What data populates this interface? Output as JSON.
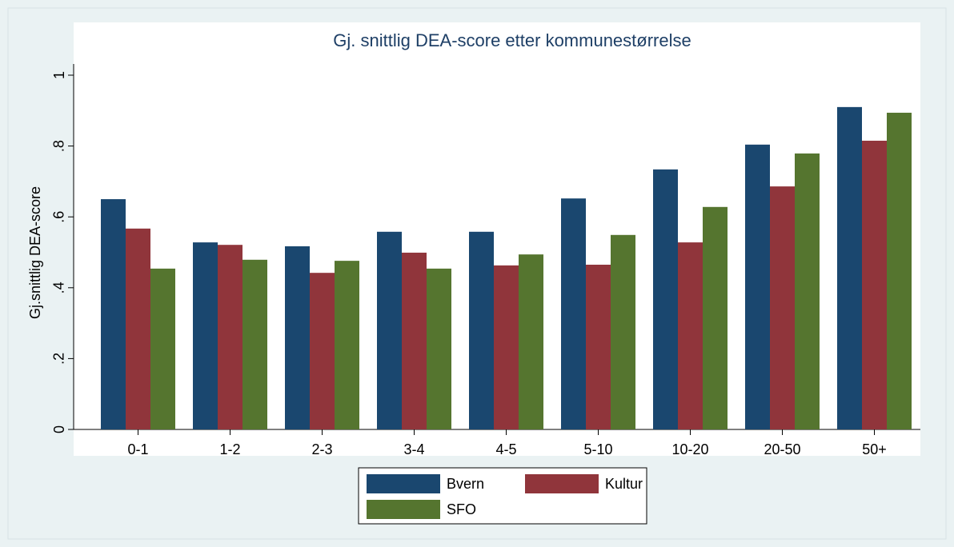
{
  "chart_data": {
    "type": "bar",
    "title": "Gj. snittlig DEA-score etter kommunestørrelse",
    "y_label": "Gj.snittlig DEA-score",
    "categories": [
      "0-1",
      "1-2",
      "2-3",
      "3-4",
      "4-5",
      "5-10",
      "10-20",
      "20-50",
      "50+"
    ],
    "series": [
      {
        "name": "Bvern",
        "color": "#1a476f",
        "values": [
          0.65,
          0.528,
          0.517,
          0.558,
          0.558,
          0.652,
          0.734,
          0.804,
          0.91
        ]
      },
      {
        "name": "Kultur",
        "color": "#90353b",
        "values": [
          0.567,
          0.521,
          0.442,
          0.499,
          0.463,
          0.465,
          0.528,
          0.686,
          0.815
        ]
      },
      {
        "name": "SFO",
        "color": "#55752f",
        "values": [
          0.454,
          0.479,
          0.476,
          0.454,
          0.494,
          0.549,
          0.628,
          0.779,
          0.894
        ]
      }
    ],
    "ylim": [
      0,
      1
    ],
    "yticks": [
      0,
      {
        "value": 0.2,
        "label": ".2"
      },
      {
        "value": 0.4,
        "label": ".4"
      },
      {
        "value": 0.6,
        "label": ".6"
      },
      {
        "value": 0.8,
        "label": ".8"
      },
      1
    ]
  }
}
